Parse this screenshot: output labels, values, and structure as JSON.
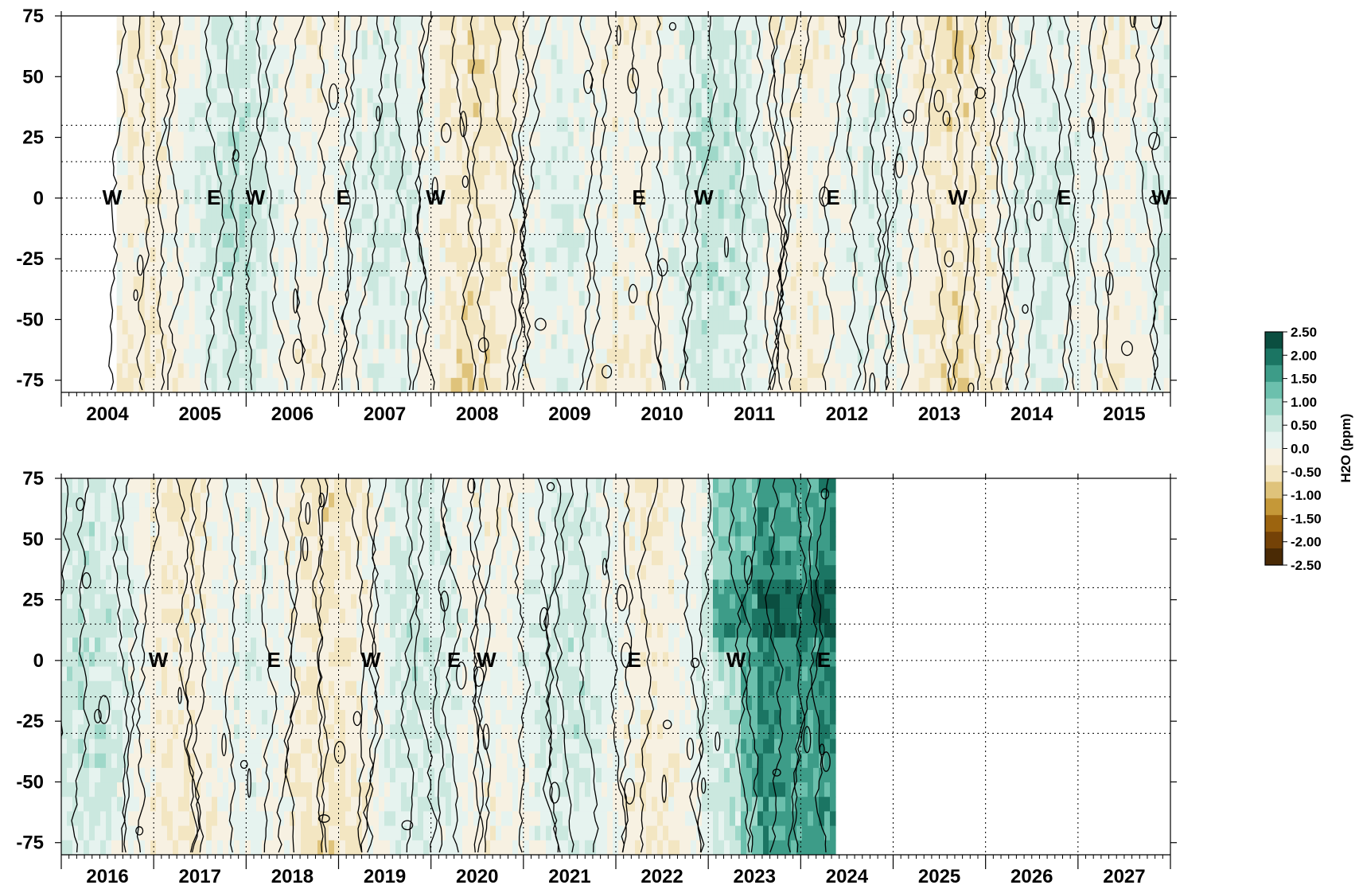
{
  "chart_data": [
    {
      "type": "heatmap",
      "panel": "top",
      "x_tick_labels": [
        "2004",
        "2005",
        "2006",
        "2007",
        "2008",
        "2009",
        "2010",
        "2011",
        "2012",
        "2013",
        "2014",
        "2015"
      ],
      "x_range": [
        2004,
        2016
      ],
      "y_tick_labels": [
        "75",
        "50",
        "25",
        "0",
        "-25",
        "-50",
        "-75"
      ],
      "y_range": [
        -80,
        75
      ],
      "data_start": 2004.6,
      "data_end": 2016,
      "phase_annotations": [
        {
          "label": "W",
          "x": 2004.55
        },
        {
          "label": "E",
          "x": 2005.65
        },
        {
          "label": "W",
          "x": 2006.1
        },
        {
          "label": "E",
          "x": 2007.05
        },
        {
          "label": "W",
          "x": 2008.05
        },
        {
          "label": "E",
          "x": 2010.25
        },
        {
          "label": "W",
          "x": 2010.95
        },
        {
          "label": "E",
          "x": 2012.35
        },
        {
          "label": "W",
          "x": 2013.7
        },
        {
          "label": "E",
          "x": 2014.85
        },
        {
          "label": "W",
          "x": 2015.9
        }
      ],
      "reference_latitudes": [
        30,
        15,
        0,
        -15,
        -30
      ]
    },
    {
      "type": "heatmap",
      "panel": "bottom",
      "x_tick_labels": [
        "2016",
        "2017",
        "2018",
        "2019",
        "2020",
        "2021",
        "2022",
        "2023",
        "2024",
        "2025",
        "2026",
        "2027"
      ],
      "x_range": [
        2016,
        2028
      ],
      "y_tick_labels": [
        "75",
        "50",
        "25",
        "0",
        "-25",
        "-50",
        "-75"
      ],
      "y_range": [
        -80,
        75
      ],
      "data_start": 2016,
      "data_end": 2024.35,
      "phase_annotations": [
        {
          "label": "W",
          "x": 2017.05
        },
        {
          "label": "E",
          "x": 2018.3
        },
        {
          "label": "W",
          "x": 2019.35
        },
        {
          "label": "E",
          "x": 2020.25
        },
        {
          "label": "W",
          "x": 2020.6
        },
        {
          "label": "E",
          "x": 2022.2
        },
        {
          "label": "W",
          "x": 2023.3
        },
        {
          "label": "E",
          "x": 2024.25
        }
      ],
      "reference_latitudes": [
        30,
        15,
        0,
        -15,
        -30
      ]
    }
  ],
  "colorbar": {
    "label": "H2O (ppm)",
    "tick_labels": [
      "2.50",
      "2.00",
      "1.50",
      "1.00",
      "0.50",
      "0.0",
      "-0.50",
      "-1.00",
      "-1.50",
      "-2.00",
      "-2.50"
    ],
    "range": [
      -2.5,
      2.5
    ],
    "colors": [
      "#4a2a05",
      "#744207",
      "#9c640f",
      "#c59838",
      "#dfc37b",
      "#f3e6c2",
      "#f7f1e2",
      "#e6f3ef",
      "#cbe8df",
      "#9fd8c9",
      "#6cc0ad",
      "#3d9c88",
      "#1b7563",
      "#0b4e40"
    ]
  }
}
